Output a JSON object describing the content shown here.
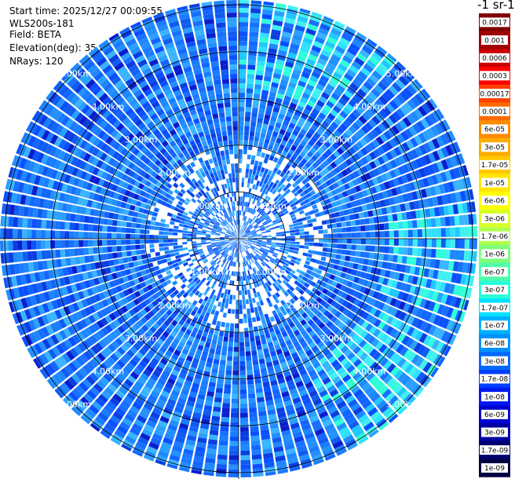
{
  "info": {
    "start_time": "Start time: 2025/12/27 00:09:55",
    "instrument": "WLS200s-181",
    "field": "Field: BETA",
    "elevation": "Elevation(deg): 35.00",
    "nrays": "NRays: 120"
  },
  "colorbar": {
    "unit_title": "-1 sr-1",
    "colors": [
      "#800000",
      "#a00000",
      "#cc0000",
      "#ff0000",
      "#ff4000",
      "#ff6a00",
      "#ff8c00",
      "#ffaa00",
      "#ffc800",
      "#ffe600",
      "#ffff00",
      "#d8ff28",
      "#b0ff50",
      "#7cff7c",
      "#50ffa8",
      "#28ffd8",
      "#00e0ff",
      "#00b0ff",
      "#0090ff",
      "#0068ff",
      "#0040ff",
      "#0018f0",
      "#0000d0",
      "#0000a0",
      "#000070",
      "#000040"
    ]
  },
  "chart_data": {
    "type": "ppi",
    "colorbar_ticks": [
      "0.0017",
      "0.001",
      "0.0006",
      "0.0003",
      "0.00017",
      "0.0001",
      "6e-05",
      "3e-05",
      "1.7e-05",
      "1e-05",
      "6e-06",
      "3e-06",
      "1.7e-06",
      "1e-06",
      "6e-07",
      "3e-07",
      "1.7e-07",
      "1e-07",
      "6e-08",
      "3e-08",
      "1.7e-08",
      "1e-08",
      "6e-09",
      "3e-09",
      "1.7e-09",
      "1e-09"
    ],
    "range_rings_km": [
      1,
      2,
      3,
      4,
      5
    ],
    "range_labels": [
      "1.00km",
      "2.00km",
      "3.00km",
      "4.00km",
      "5.00km"
    ],
    "nrays": 120
  }
}
